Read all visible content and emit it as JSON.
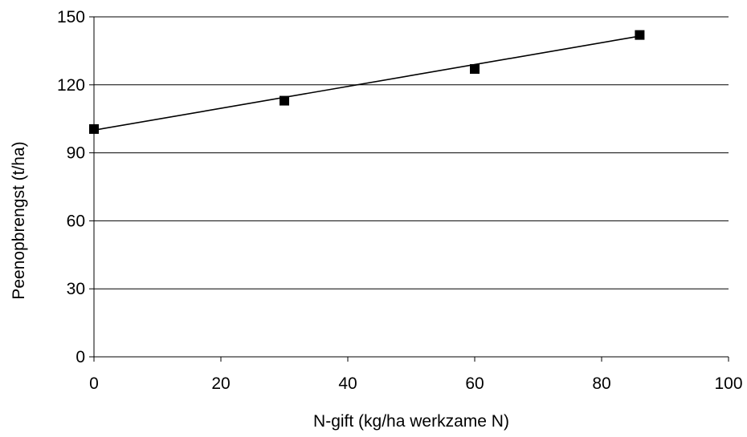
{
  "chart_data": {
    "type": "scatter",
    "title": "",
    "xlabel": "N-gift (kg/ha werkzame N)",
    "ylabel": "Peenopbrengst (t/ha)",
    "xlim": [
      0,
      100
    ],
    "ylim": [
      0,
      150
    ],
    "x_ticks": [
      0,
      20,
      40,
      60,
      80,
      100
    ],
    "y_ticks": [
      0,
      30,
      60,
      90,
      120,
      150
    ],
    "grid": "horizontal",
    "legend": "none",
    "series": [
      {
        "x": [
          0,
          30,
          60,
          86
        ],
        "y": [
          100.5,
          113,
          127,
          142
        ],
        "marker": "square",
        "color": "#000000"
      }
    ],
    "trendline": {
      "type": "linear",
      "x": [
        0,
        86
      ],
      "y": [
        100,
        141.5
      ],
      "color": "#000000"
    }
  }
}
